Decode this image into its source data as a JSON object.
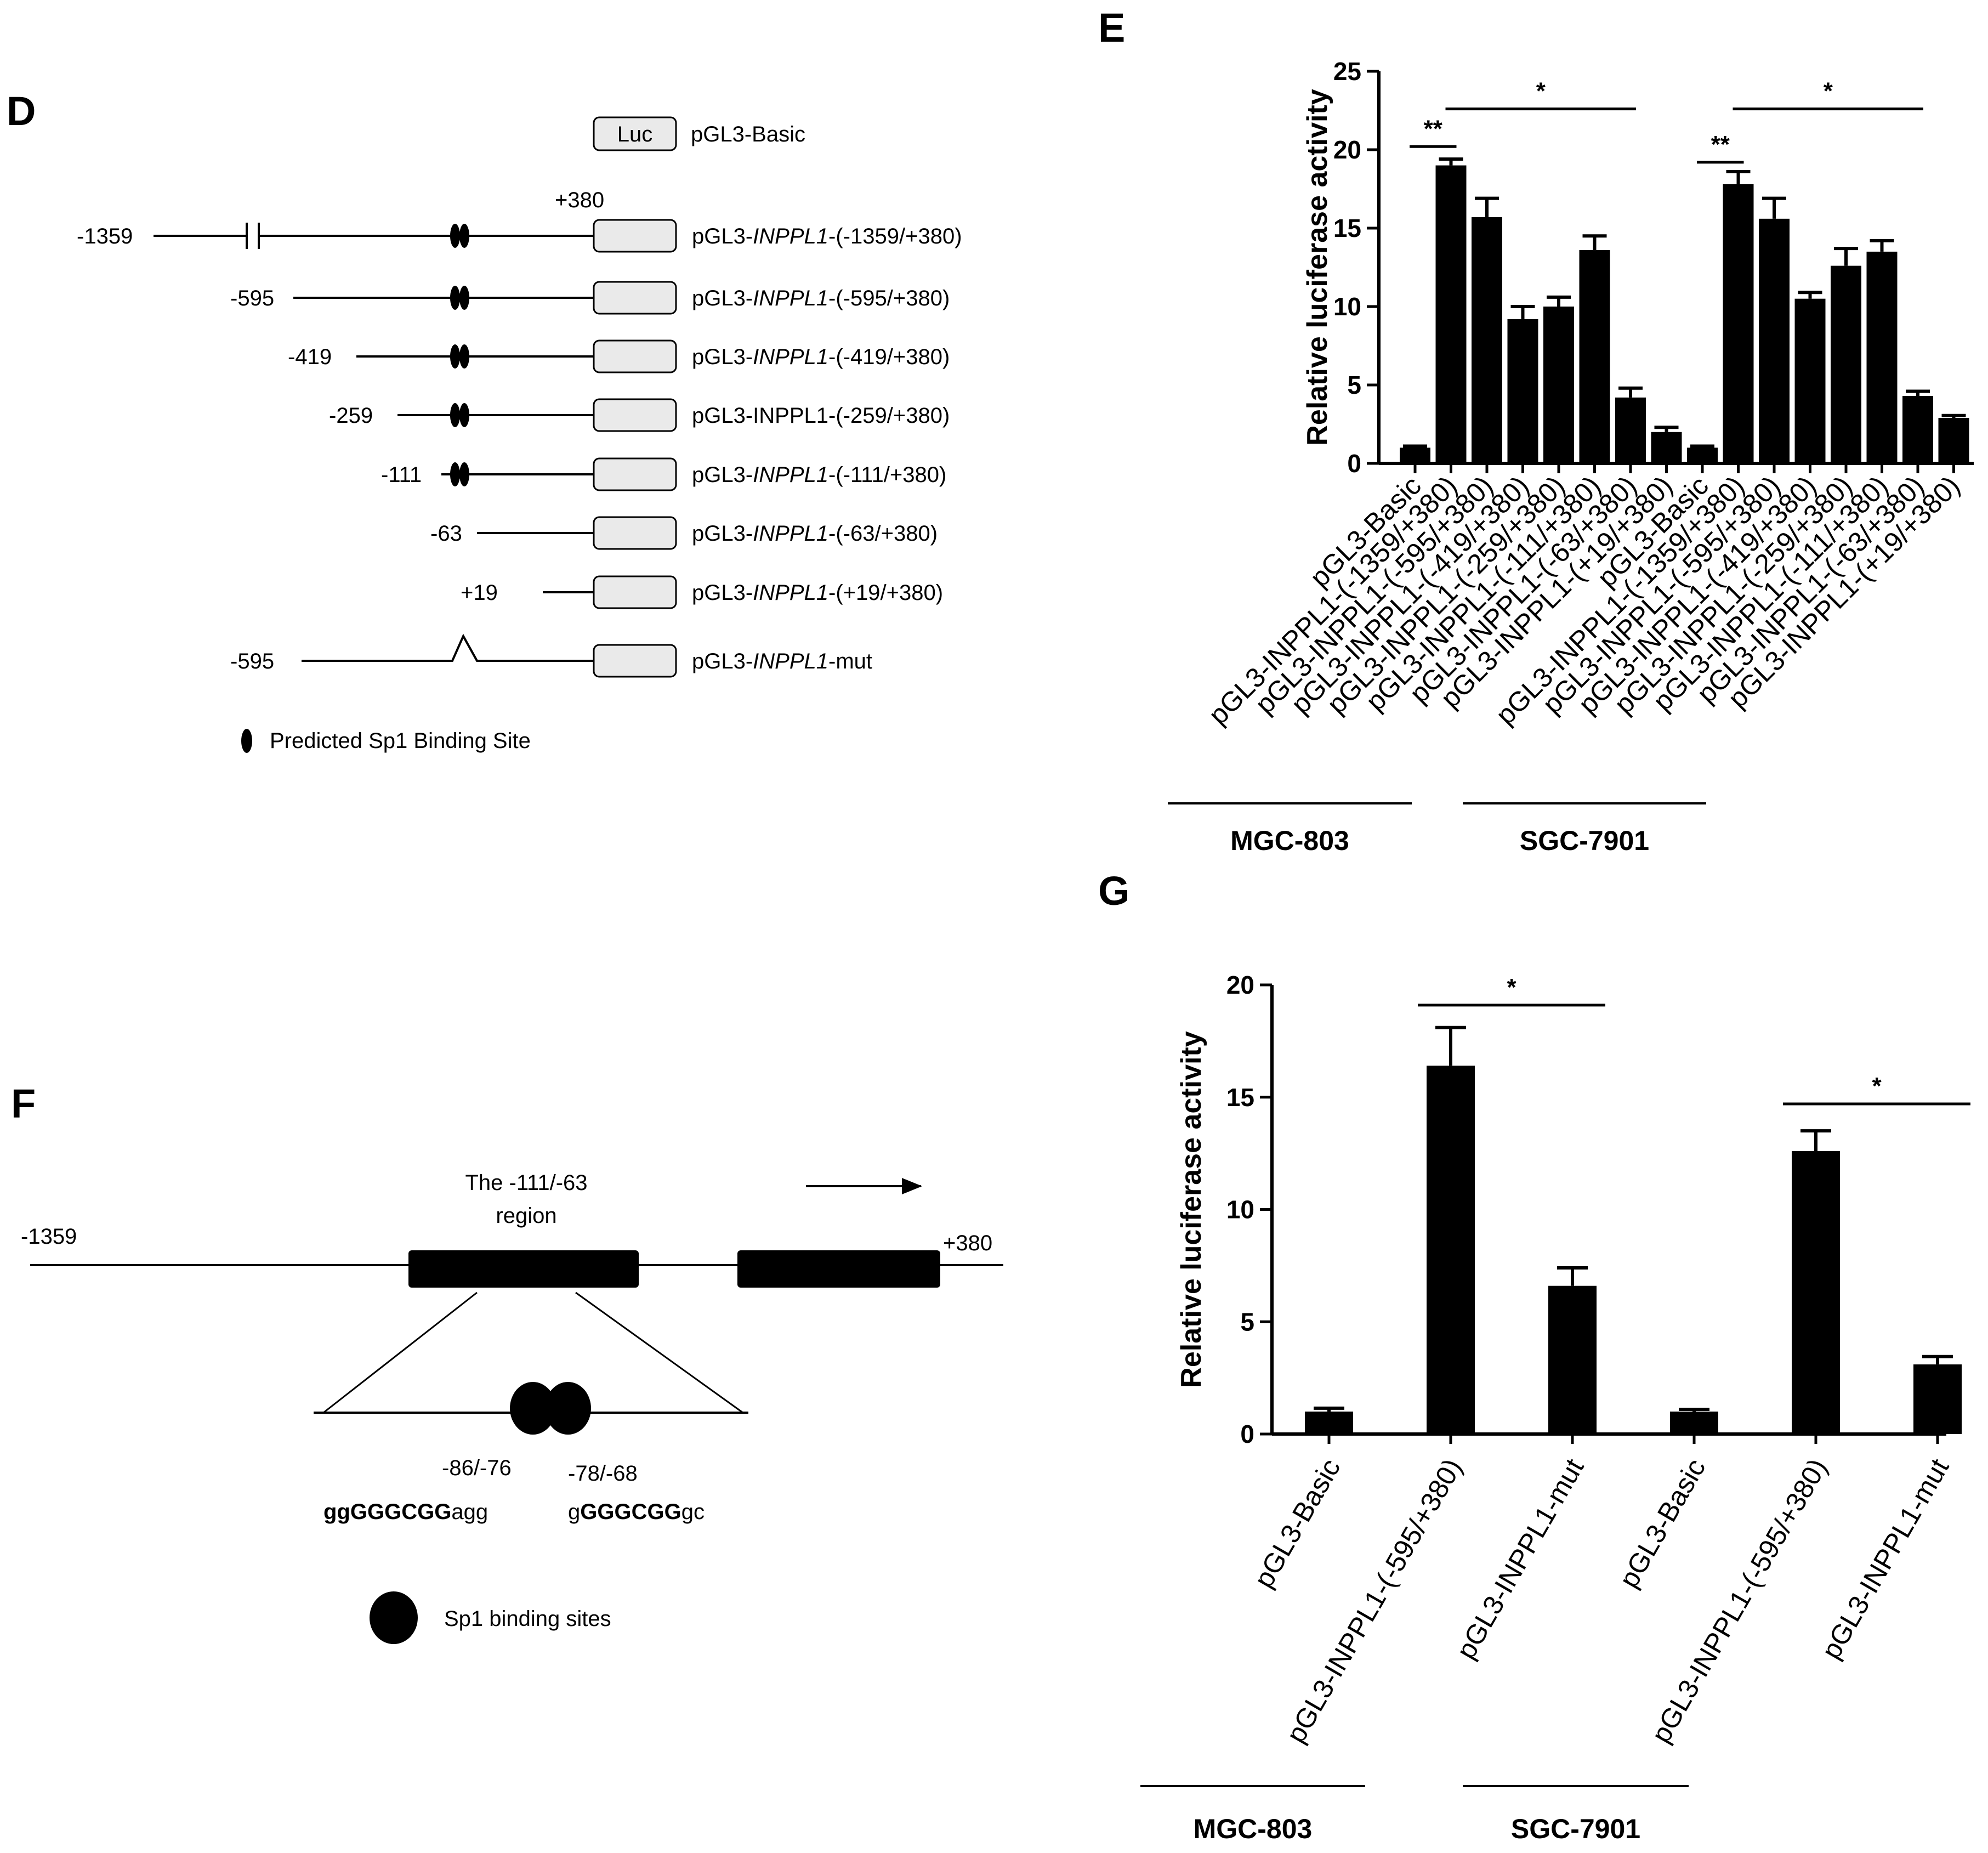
{
  "panel_labels": {
    "d": "D",
    "e": "E",
    "f": "F",
    "g": "G"
  },
  "panel_d": {
    "header": {
      "box": "Luc",
      "name": "pGL3-Basic"
    },
    "plus380": "+380",
    "constructs": [
      {
        "pos": "-1359",
        "pre": "pGL3-",
        "gene": "INPPL1",
        "post": "-(-1359/+380)",
        "italic": true
      },
      {
        "pos": "-595",
        "pre": "pGL3-",
        "gene": "INPPL1",
        "post": "-(-595/+380)",
        "italic": true
      },
      {
        "pos": "-419",
        "pre": "pGL3-",
        "gene": "INPPL1",
        "post": "-(-419/+380)",
        "italic": true
      },
      {
        "pos": "-259",
        "pre": "pGL3-",
        "gene": "INPPL1",
        "post": "-(-259/+380)",
        "italic": false
      },
      {
        "pos": "-111",
        "pre": "pGL3-",
        "gene": "INPPL1",
        "post": "-(-111/+380)",
        "italic": true
      },
      {
        "pos": "-63",
        "pre": "pGL3-",
        "gene": "INPPL1",
        "post": "-(-63/+380)",
        "italic": true
      },
      {
        "pos": "+19",
        "pre": "pGL3-",
        "gene": "INPPL1",
        "post": "-(+19/+380)",
        "italic": true
      },
      {
        "pos": "-595",
        "pre": "pGL3-",
        "gene": "INPPL1",
        "post": "-mut",
        "italic": true
      }
    ],
    "legend": "Predicted Sp1 Binding Site"
  },
  "panel_f": {
    "region_line1": "The -111/-63",
    "region_line2": "region",
    "left_pos": "-1359",
    "right_pos": "+380",
    "site1_pos": "-86/-76",
    "site2_pos": "-78/-68",
    "seq1_bold": "ggGGGCGG",
    "seq1_rest": "agg",
    "seq2_pre": "g",
    "seq2_bold": "GGGCGG",
    "seq2_rest": "gc",
    "legend": "Sp1 binding sites"
  },
  "chart_data": [
    {
      "id": "E",
      "type": "bar",
      "ylabel": "Relative luciferase activity",
      "ylim": [
        0,
        25
      ],
      "yticks": [
        0,
        5,
        10,
        15,
        20,
        25
      ],
      "categories": [
        "pGL3-Basic",
        "pGL3-INPPL1-(-1359/+380)",
        "pGL3-INPPL1-(-595/+380)",
        "pGL3-INPPL1-(-419/+380)",
        "pGL3-INPPL1-(-259/+380)",
        "pGL3-INPPL1-(-111/+380)",
        "pGL3-INPPL1-(-63/+380)",
        "pGL3-INPPL1-(+19/+380)",
        "pGL3-Basic",
        "pGL3-INPPL1-(-1359/+380)",
        "pGL3-INPPL1-(-595/+380)",
        "pGL3-INPPL1-(-419/+380)",
        "pGL3-INPPL1-(-259/+380)",
        "pGL3-INPPL1-(-111/+380)",
        "pGL3-INPPL1-(-63/+380)",
        "pGL3-INPPL1-(+19/+380)"
      ],
      "values": [
        1.0,
        19.0,
        15.7,
        9.2,
        10.0,
        13.6,
        4.2,
        2.0,
        1.0,
        17.8,
        15.6,
        10.5,
        12.6,
        13.5,
        4.3,
        2.9
      ],
      "errors": [
        0.1,
        0.4,
        1.2,
        0.8,
        0.6,
        0.9,
        0.6,
        0.3,
        0.1,
        0.8,
        1.3,
        0.4,
        1.1,
        0.7,
        0.3,
        0.15
      ],
      "groups": [
        {
          "name": "MGC-803",
          "from": 0,
          "to": 7
        },
        {
          "name": "SGC-7901",
          "from": 8,
          "to": 15
        }
      ],
      "annotations": [
        {
          "label": "**",
          "from": 0,
          "to": 1,
          "y": 20.2
        },
        {
          "label": "*",
          "from": 1,
          "to": 6,
          "y": 22.6
        },
        {
          "label": "**",
          "from": 8,
          "to": 9,
          "y": 19.2
        },
        {
          "label": "*",
          "from": 9,
          "to": 14,
          "y": 22.6
        }
      ]
    },
    {
      "id": "G",
      "type": "bar",
      "ylabel": "Relative luciferase activity",
      "ylim": [
        0,
        20
      ],
      "yticks": [
        0,
        5,
        10,
        15,
        20
      ],
      "categories": [
        "pGL3-Basic",
        "pGL3-INPPL1-(-595/+380)",
        "pGL3-INPPL1-mut",
        "pGL3-Basic",
        "pGL3-INPPL1-(-595/+380)",
        "pGL3-INPPL1-mut"
      ],
      "values": [
        1.0,
        16.4,
        6.6,
        1.0,
        12.6,
        3.1
      ],
      "errors": [
        0.15,
        1.7,
        0.8,
        0.1,
        0.9,
        0.35
      ],
      "groups": [
        {
          "name": "MGC-803",
          "from": 0,
          "to": 2
        },
        {
          "name": "SGC-7901",
          "from": 3,
          "to": 5
        }
      ],
      "annotations": [
        {
          "label": "*",
          "from": 1,
          "to": 2,
          "y": 19.1
        },
        {
          "label": "*",
          "from": 4,
          "to": 5,
          "y": 14.7
        }
      ]
    }
  ]
}
